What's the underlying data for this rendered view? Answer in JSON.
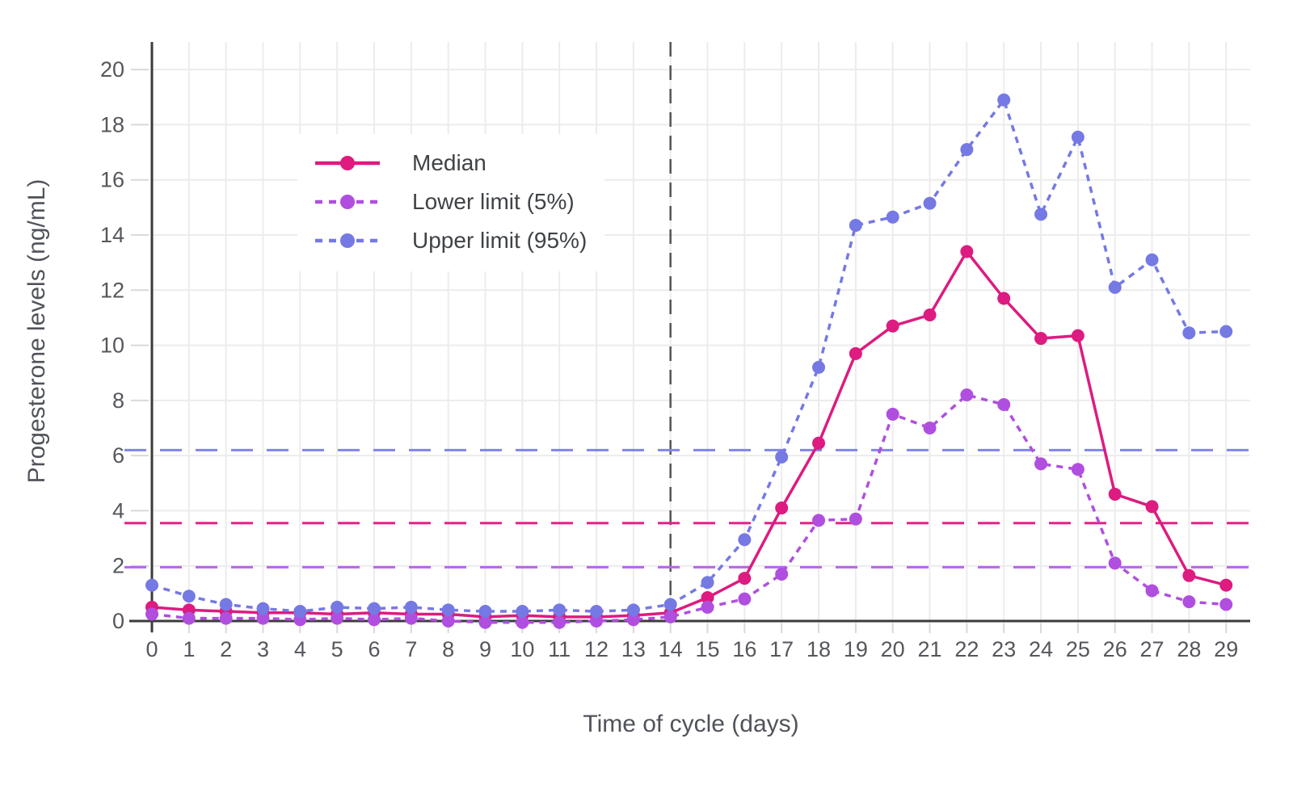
{
  "chart_data": {
    "type": "line",
    "title": "",
    "xlabel": "Time of cycle (days)",
    "ylabel": "Progesterone levels (ng/mL)",
    "x": [
      0,
      1,
      2,
      3,
      4,
      5,
      6,
      7,
      8,
      9,
      10,
      11,
      12,
      13,
      14,
      15,
      16,
      17,
      18,
      19,
      20,
      21,
      22,
      23,
      24,
      25,
      26,
      27,
      28,
      29
    ],
    "xlim": [
      0,
      29.65
    ],
    "ylim": [
      -0.2,
      21
    ],
    "yticks": [
      0,
      2,
      4,
      6,
      8,
      10,
      12,
      14,
      16,
      18,
      20
    ],
    "grid": true,
    "legend_position": "upper-left-inside",
    "series": [
      {
        "name": "Median",
        "style": "solid",
        "color": "#dd1b80",
        "values": [
          0.5,
          0.4,
          0.35,
          0.3,
          0.3,
          0.25,
          0.3,
          0.25,
          0.25,
          0.15,
          0.2,
          0.15,
          0.15,
          0.2,
          0.3,
          0.85,
          1.55,
          4.1,
          6.45,
          9.7,
          10.7,
          11.1,
          13.4,
          11.7,
          10.25,
          10.35,
          4.6,
          4.15,
          1.65,
          1.3
        ]
      },
      {
        "name": "Lower limit (5%)",
        "style": "dashed",
        "color": "#b04fdf",
        "values": [
          0.25,
          0.1,
          0.1,
          0.1,
          0.05,
          0.1,
          0.05,
          0.1,
          0.0,
          -0.05,
          -0.05,
          -0.05,
          0.0,
          0.05,
          0.15,
          0.5,
          0.8,
          1.7,
          3.65,
          3.7,
          7.5,
          7.0,
          8.2,
          7.85,
          5.7,
          5.5,
          2.1,
          1.1,
          0.7,
          0.6
        ]
      },
      {
        "name": "Upper limit (95%)",
        "style": "dashed",
        "color": "#7579e4",
        "values": [
          1.3,
          0.9,
          0.6,
          0.45,
          0.35,
          0.5,
          0.45,
          0.5,
          0.4,
          0.35,
          0.35,
          0.4,
          0.35,
          0.4,
          0.6,
          1.4,
          2.95,
          5.95,
          9.2,
          14.35,
          14.65,
          15.15,
          17.1,
          18.9,
          14.75,
          17.55,
          12.1,
          13.1,
          10.45,
          10.5
        ]
      }
    ],
    "reference_lines": [
      {
        "name": "upper-limit-reference",
        "value": 6.2,
        "color": "#8084ec"
      },
      {
        "name": "median-reference",
        "value": 3.55,
        "color": "#e81f88"
      },
      {
        "name": "lower-limit-reference",
        "value": 1.95,
        "color": "#bb63ea"
      }
    ],
    "vline": {
      "x": 14,
      "color": "#555555"
    },
    "style": {
      "grid_color": "#ececec",
      "axis_color": "#3b3b3b",
      "tick_color": "#d9d9d9",
      "tick_label_color": "#55575c",
      "tick_font_size": 27
    }
  }
}
